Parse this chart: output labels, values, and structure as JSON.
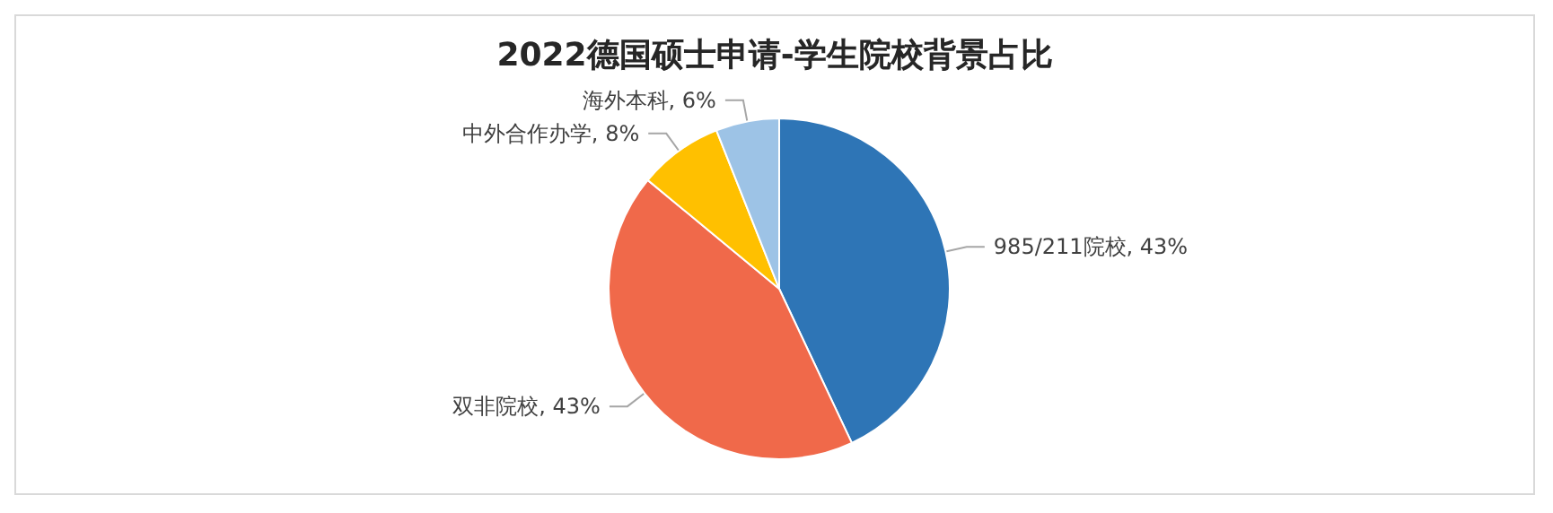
{
  "chart_data": {
    "type": "pie",
    "title": "2022德国硕士申请-学生院校背景占比",
    "categories": [
      "985/211院校",
      "双非院校",
      "中外合作办学",
      "海外本科"
    ],
    "values": [
      43,
      43,
      8,
      6
    ],
    "value_labels": [
      "43%",
      "43%",
      "8%",
      "6%"
    ],
    "colors": [
      "#2e75b6",
      "#f0694a",
      "#ffc000",
      "#9dc3e6"
    ],
    "legend": false
  }
}
